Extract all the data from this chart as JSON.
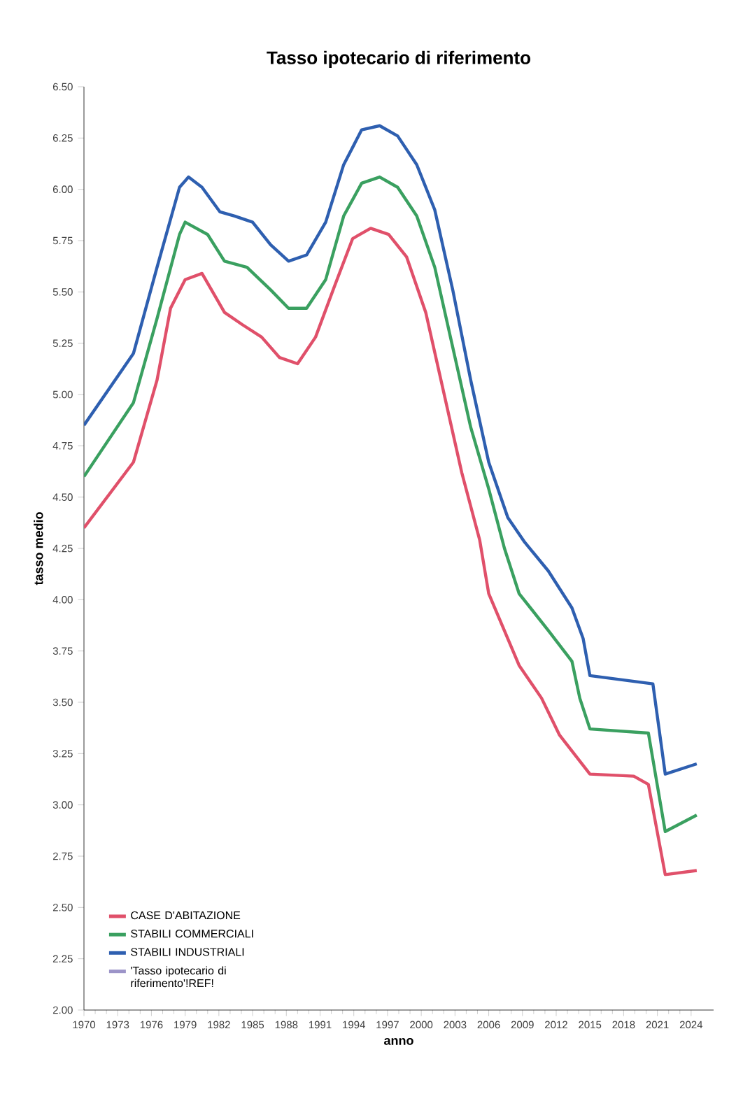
{
  "chart_data": {
    "type": "line",
    "title": "Tasso ipotecario di riferimento",
    "xlabel": "anno",
    "ylabel": "tasso medio",
    "xlim": [
      1970,
      2026
    ],
    "xticks": [
      1970,
      1973,
      1976,
      1979,
      1982,
      1985,
      1988,
      1991,
      1994,
      1997,
      2000,
      2003,
      2006,
      2009,
      2012,
      2015,
      2018,
      2021,
      2024
    ],
    "ylim": [
      2.0,
      6.5
    ],
    "yticks": [
      {
        "value": 2.0,
        "label": "2.00"
      },
      {
        "value": 2.25,
        "label": "2.25"
      },
      {
        "value": 2.5,
        "label": "2.50"
      },
      {
        "value": 2.75,
        "label": "2.75"
      },
      {
        "value": 3.0,
        "label": "3.00"
      },
      {
        "value": 3.25,
        "label": "3.25"
      },
      {
        "value": 3.5,
        "label": "3.50"
      },
      {
        "value": 3.75,
        "label": "3.75"
      },
      {
        "value": 4.0,
        "label": "4.00"
      },
      {
        "value": 4.25,
        "label": "4.25"
      },
      {
        "value": 4.5,
        "label": "4.50"
      },
      {
        "value": 4.75,
        "label": "4.75"
      },
      {
        "value": 5.0,
        "label": "5.00"
      },
      {
        "value": 5.25,
        "label": "5.25"
      },
      {
        "value": 5.5,
        "label": "5.50"
      },
      {
        "value": 5.75,
        "label": "5.75"
      },
      {
        "value": 6.0,
        "label": "6.00"
      },
      {
        "value": 6.25,
        "label": "6.25"
      },
      {
        "value": 6.5,
        "label": "6.50"
      }
    ],
    "grid": false,
    "legend": "bottom left",
    "marker": "none",
    "line_style": "solid",
    "series": [
      {
        "name": "CASE D'ABITAZIONE",
        "color": "#e0506a",
        "x": [
          1970,
          1974.4,
          1976.5,
          1977.7,
          1979,
          1980.5,
          1982.5,
          1984.1,
          1985.8,
          1987.4,
          1989,
          1990.6,
          1992.3,
          1993.9,
          1995.5,
          1997.1,
          1998.7,
          2000.4,
          2002,
          2003.6,
          2005.2,
          2006,
          2008.7,
          2010.7,
          2012.3,
          2015,
          2018.9,
          2020.2,
          2021.7,
          2024.5
        ],
        "values": [
          4.35,
          4.67,
          5.07,
          5.42,
          5.56,
          5.59,
          5.4,
          5.34,
          5.28,
          5.18,
          5.15,
          5.28,
          5.53,
          5.76,
          5.81,
          5.78,
          5.67,
          5.4,
          5.01,
          4.62,
          4.29,
          4.03,
          3.68,
          3.52,
          3.34,
          3.15,
          3.14,
          3.1,
          2.66,
          2.68
        ]
      },
      {
        "name": "STABILI COMMERCIALI",
        "color": "#3aa060",
        "x": [
          1970,
          1974.4,
          1976.5,
          1978.5,
          1979,
          1981,
          1982.5,
          1984.5,
          1986.6,
          1988.2,
          1989.8,
          1991.5,
          1993.1,
          1994.7,
          1996.3,
          1997.9,
          1999.6,
          2001.2,
          2002.8,
          2004.4,
          2006,
          2007.4,
          2008.7,
          2011.3,
          2013.4,
          2014.1,
          2015,
          2020.2,
          2021.7,
          2024.5
        ],
        "values": [
          4.6,
          4.96,
          5.37,
          5.78,
          5.84,
          5.78,
          5.65,
          5.62,
          5.51,
          5.42,
          5.42,
          5.56,
          5.87,
          6.03,
          6.06,
          6.01,
          5.87,
          5.62,
          5.23,
          4.84,
          4.54,
          4.25,
          4.03,
          3.85,
          3.7,
          3.52,
          3.37,
          3.35,
          2.87,
          2.95
        ]
      },
      {
        "name": "STABILI INDUSTRIALI",
        "color": "#2e5fb0",
        "x": [
          1970,
          1974.4,
          1976.5,
          1978.5,
          1979.3,
          1980.5,
          1982.1,
          1983.4,
          1985,
          1986.6,
          1988.2,
          1989.8,
          1991.5,
          1993.1,
          1994.7,
          1996.3,
          1997.9,
          1999.6,
          2001.2,
          2002.8,
          2004.4,
          2006,
          2007.7,
          2009.2,
          2011.3,
          2013.4,
          2014.4,
          2015,
          2020.6,
          2021.7,
          2024.5
        ],
        "values": [
          4.85,
          5.2,
          5.62,
          6.01,
          6.06,
          6.01,
          5.89,
          5.87,
          5.84,
          5.73,
          5.65,
          5.68,
          5.84,
          6.12,
          6.29,
          6.31,
          6.26,
          6.12,
          5.9,
          5.51,
          5.07,
          4.67,
          4.4,
          4.28,
          4.14,
          3.96,
          3.81,
          3.63,
          3.59,
          3.15,
          3.2
        ]
      },
      {
        "name": "'Tasso ipotecario di riferimento'!REF!",
        "color": "#9c94c8"
      }
    ]
  }
}
